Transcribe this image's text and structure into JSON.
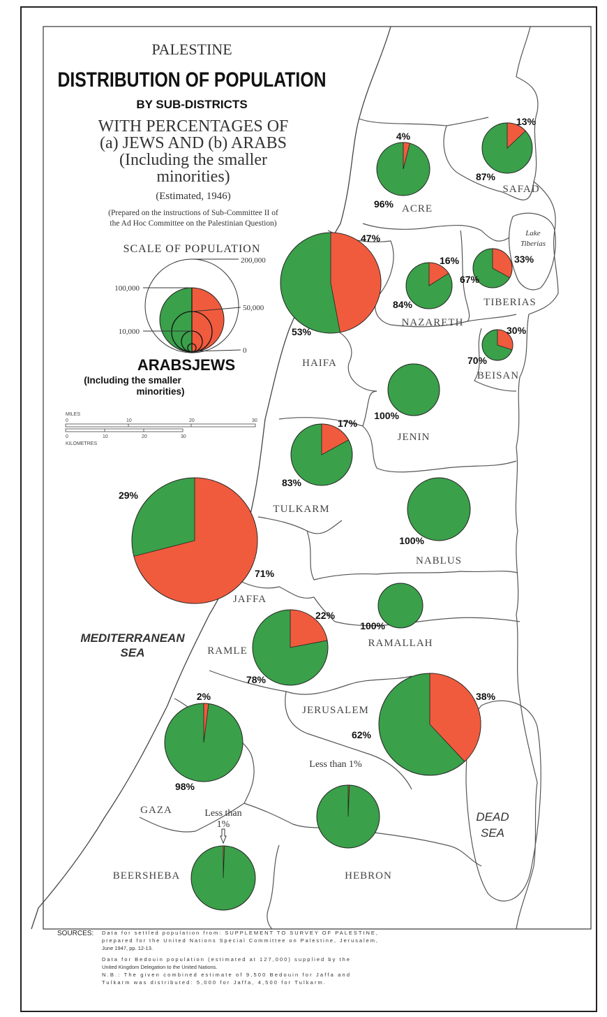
{
  "title": {
    "line1": "PALESTINE",
    "line2": "DISTRIBUTION OF POPULATION",
    "line3": "BY SUB-DISTRICTS",
    "line4": "WITH PERCENTAGES OF",
    "line5": "(a) JEWS AND (b) ARABS",
    "line6": "(Including the smaller",
    "line7": "minorities)",
    "line8": "(Estimated, 1946)",
    "line9": "(Prepared on the instructions of Sub-Committee II of",
    "line10": "the Ad Hoc Committee on the Palestinian Question)"
  },
  "scale": {
    "title": "SCALE OF POPULATION",
    "labels": [
      "200,000",
      "100,000",
      "50,000",
      "10,000",
      "0"
    ]
  },
  "legend": {
    "arabs": "ARABS",
    "jews": "JEWS",
    "note1": "(Including the smaller",
    "note2": "minorities)"
  },
  "scalebar": {
    "miles": "MILES",
    "miles_ticks": [
      "0",
      "10",
      "20",
      "30"
    ],
    "km": "KILOMETRES",
    "km_ticks": [
      "0",
      "10",
      "20",
      "30"
    ]
  },
  "sea": {
    "line1": "MEDITERRANEAN",
    "line2": "SEA"
  },
  "dead_sea": {
    "line1": "DEAD",
    "line2": "SEA"
  },
  "lake": {
    "line1": "Lake",
    "line2": "Tiberias"
  },
  "colors": {
    "jews": "#f05b3e",
    "arabs": "#3aa04a"
  },
  "districts": [
    {
      "name": "ACRE",
      "jews_pct": 4,
      "arabs_pct": 96,
      "jews_label": "4",
      "arabs_label": "96"
    },
    {
      "name": "SAFAD",
      "jews_pct": 13,
      "arabs_pct": 87,
      "jews_label": "13",
      "arabs_label": "87"
    },
    {
      "name": "HAIFA",
      "jews_pct": 47,
      "arabs_pct": 53,
      "jews_label": "47",
      "arabs_label": "53"
    },
    {
      "name": "NAZARETH",
      "jews_pct": 16,
      "arabs_pct": 84,
      "jews_label": "16",
      "arabs_label": "84"
    },
    {
      "name": "TIBERIAS",
      "jews_pct": 33,
      "arabs_pct": 67,
      "jews_label": "33",
      "arabs_label": "67"
    },
    {
      "name": "BEISAN",
      "jews_pct": 30,
      "arabs_pct": 70,
      "jews_label": "30",
      "arabs_label": "70"
    },
    {
      "name": "JENIN",
      "jews_pct": 0,
      "arabs_pct": 100,
      "jews_label": "",
      "arabs_label": "100"
    },
    {
      "name": "TULKARM",
      "jews_pct": 17,
      "arabs_pct": 83,
      "jews_label": "17",
      "arabs_label": "83"
    },
    {
      "name": "JAFFA",
      "jews_pct": 71,
      "arabs_pct": 29,
      "jews_label": "71",
      "arabs_label": "29"
    },
    {
      "name": "NABLUS",
      "jews_pct": 0,
      "arabs_pct": 100,
      "jews_label": "",
      "arabs_label": "100"
    },
    {
      "name": "RAMLE",
      "jews_pct": 22,
      "arabs_pct": 78,
      "jews_label": "22",
      "arabs_label": "78"
    },
    {
      "name": "RAMALLAH",
      "jews_pct": 0,
      "arabs_pct": 100,
      "jews_label": "",
      "arabs_label": "100"
    },
    {
      "name": "JERUSALEM",
      "jews_pct": 38,
      "arabs_pct": 62,
      "jews_label": "38",
      "arabs_label": "62"
    },
    {
      "name": "GAZA",
      "jews_pct": 2,
      "arabs_pct": 98,
      "jews_label": "2",
      "arabs_label": "98"
    },
    {
      "name": "HEBRON",
      "jews_pct": 0.6,
      "arabs_pct": 99.4,
      "jews_label": "Less than 1",
      "arabs_label": ""
    },
    {
      "name": "BEERSHEBA",
      "jews_pct": 0.6,
      "arabs_pct": 99.4,
      "jews_label": "Less than",
      "jews_label2": "1",
      "arabs_label": ""
    }
  ],
  "sources": {
    "heading": "SOURCES:",
    "lines": [
      "Data for settled population from: SUPPLEMENT TO SURVEY OF PALESTINE,",
      "prepared for the United Nations Special Committee on Palestine, Jerusalem,",
      "June 1947, pp. 12-13.",
      "Data for Bedouin population (estimated at 127,000) supplied by the",
      "United Kingdom Delegation to the United Nations.",
      "N.B.: The given combined estimate of 9,500 Bedouin for Jaffa and",
      "Tulkarm was distributed: 5,000 for Jaffa, 4,500 for Tulkarm."
    ]
  }
}
